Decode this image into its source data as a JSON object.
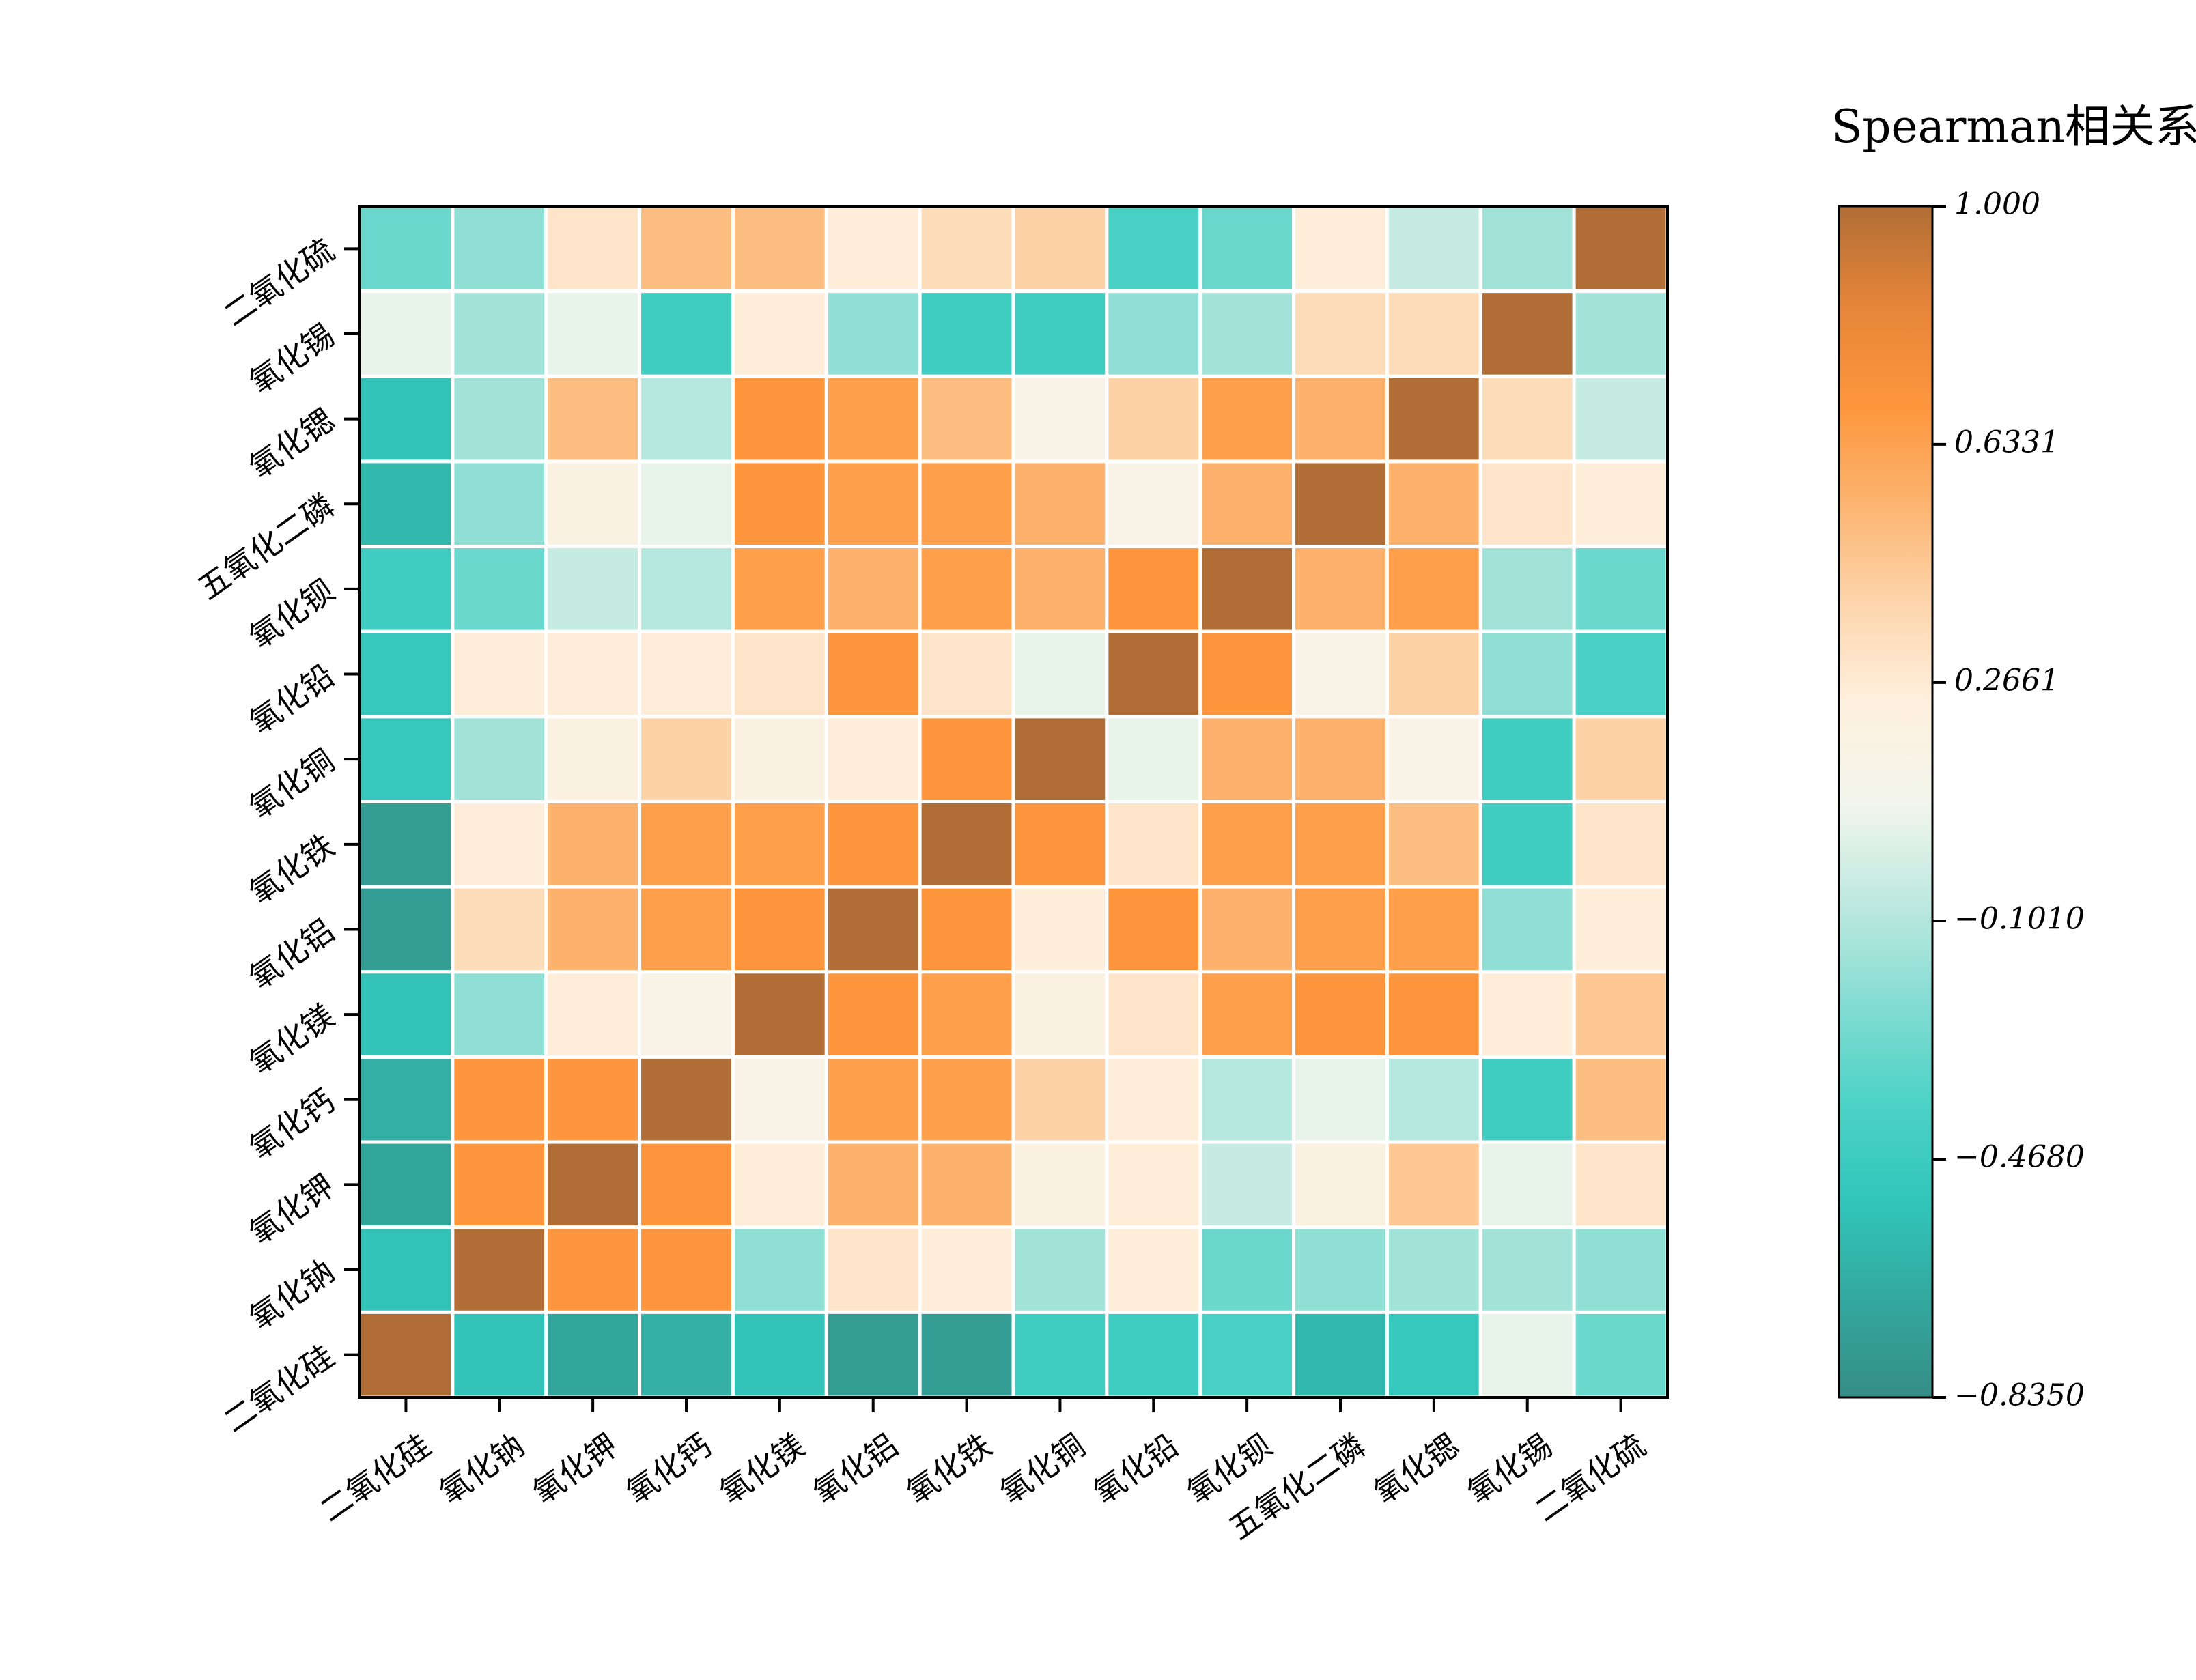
{
  "chart_data": {
    "type": "heatmap",
    "title": "Spearman相关系数",
    "x_labels": [
      "二氧化硅",
      "氧化钠",
      "氧化钾",
      "氧化钙",
      "氧化镁",
      "氧化铝",
      "氧化铁",
      "氧化铜",
      "氧化铅",
      "氧化钡",
      "五氧化二磷",
      "氧化锶",
      "氧化锡",
      "二氧化硫"
    ],
    "y_labels_top_to_bottom": [
      "二氧化硫",
      "氧化锡",
      "氧化锶",
      "五氧化二磷",
      "氧化钡",
      "氧化铅",
      "氧化铜",
      "氧化铁",
      "氧化铝",
      "氧化镁",
      "氧化钙",
      "氧化钾",
      "氧化钠",
      "二氧化硅"
    ],
    "values_top_to_bottom": [
      [
        -0.3,
        -0.2,
        0.3,
        0.5,
        0.5,
        0.25,
        0.35,
        0.4,
        -0.4,
        -0.3,
        0.25,
        -0.05,
        -0.15,
        1.0
      ],
      [
        0.05,
        -0.15,
        0.05,
        -0.45,
        0.25,
        -0.2,
        -0.45,
        -0.45,
        -0.2,
        -0.15,
        0.35,
        0.35,
        1.0,
        -0.15
      ],
      [
        -0.55,
        -0.15,
        0.5,
        -0.1,
        0.7,
        0.65,
        0.5,
        0.15,
        0.4,
        0.65,
        0.55,
        1.0,
        0.35,
        -0.05
      ],
      [
        -0.6,
        -0.2,
        0.2,
        0.05,
        0.7,
        0.65,
        0.65,
        0.55,
        0.15,
        0.55,
        1.0,
        0.55,
        0.3,
        0.25
      ],
      [
        -0.45,
        -0.3,
        -0.05,
        -0.1,
        0.65,
        0.55,
        0.65,
        0.55,
        0.7,
        1.0,
        0.55,
        0.65,
        -0.15,
        -0.3
      ],
      [
        -0.5,
        0.25,
        0.25,
        0.25,
        0.3,
        0.7,
        0.3,
        0.05,
        1.0,
        0.7,
        0.15,
        0.4,
        -0.2,
        -0.4
      ],
      [
        -0.5,
        -0.15,
        0.2,
        0.4,
        0.2,
        0.25,
        0.7,
        1.0,
        0.05,
        0.55,
        0.55,
        0.15,
        -0.45,
        0.4
      ],
      [
        -0.75,
        0.25,
        0.55,
        0.65,
        0.65,
        0.7,
        1.0,
        0.7,
        0.3,
        0.65,
        0.65,
        0.5,
        -0.45,
        0.3
      ],
      [
        -0.75,
        0.35,
        0.55,
        0.65,
        0.7,
        1.0,
        0.7,
        0.25,
        0.7,
        0.55,
        0.65,
        0.65,
        -0.2,
        0.25
      ],
      [
        -0.55,
        -0.2,
        0.25,
        0.15,
        1.0,
        0.7,
        0.65,
        0.2,
        0.3,
        0.65,
        0.7,
        0.7,
        0.25,
        0.45
      ],
      [
        -0.65,
        0.7,
        0.7,
        1.0,
        0.15,
        0.65,
        0.65,
        0.4,
        0.25,
        -0.1,
        0.05,
        -0.1,
        -0.45,
        0.5
      ],
      [
        -0.7,
        0.7,
        1.0,
        0.7,
        0.25,
        0.55,
        0.55,
        0.2,
        0.25,
        -0.05,
        0.2,
        0.45,
        0.05,
        0.3
      ],
      [
        -0.55,
        1.0,
        0.7,
        0.7,
        -0.2,
        0.3,
        0.25,
        -0.15,
        0.25,
        -0.3,
        -0.2,
        -0.15,
        -0.15,
        -0.2
      ],
      [
        1.0,
        -0.55,
        -0.7,
        -0.65,
        -0.55,
        -0.75,
        -0.75,
        -0.45,
        -0.45,
        -0.4,
        -0.6,
        -0.5,
        0.05,
        -0.3
      ]
    ],
    "colorbar": {
      "min": -0.835,
      "max": 1.0,
      "ticks": [
        1.0,
        0.6331,
        0.2661,
        -0.101,
        -0.468,
        -0.835
      ],
      "tick_labels": [
        "1.000",
        "0.6331",
        "0.2661",
        "−0.1010",
        "−0.4680",
        "−0.8350"
      ],
      "colors": [
        "#358d86",
        "#33a99f",
        "#32c6bb",
        "#4ed3c7",
        "#86ddd3",
        "#bfe9e0",
        "#f3f6ec",
        "#fef0de",
        "#fdd5ac",
        "#fcb470",
        "#fd963c",
        "#e6853a",
        "#b06d35"
      ]
    },
    "grid": false,
    "colorbar_position": "right"
  }
}
